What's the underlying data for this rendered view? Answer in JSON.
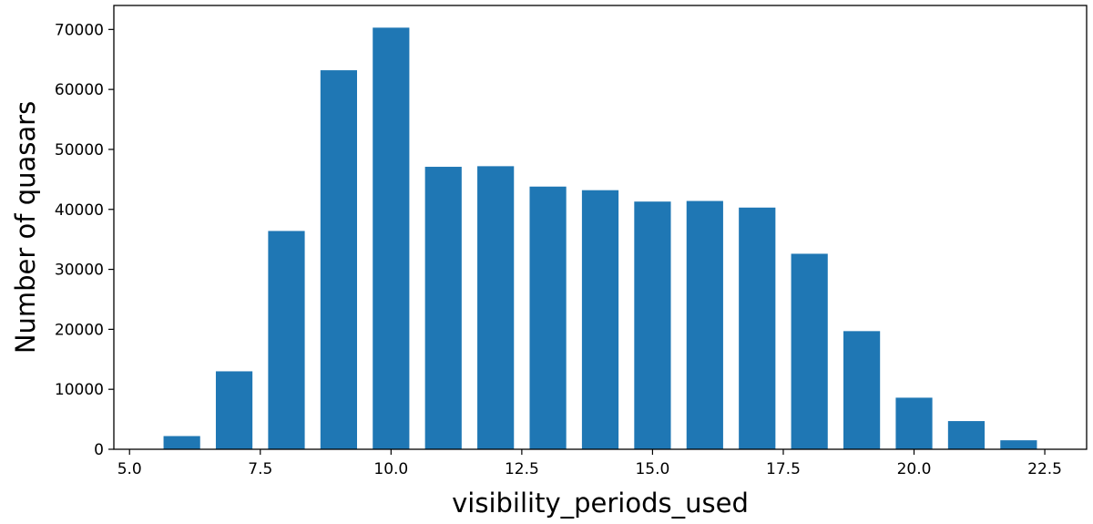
{
  "chart_data": {
    "type": "bar",
    "title": "",
    "xlabel": "visibility_periods_used",
    "ylabel": "Number of  quasars",
    "x": [
      6,
      7,
      8,
      9,
      10,
      11,
      12,
      13,
      14,
      15,
      16,
      17,
      18,
      19,
      20,
      21,
      22
    ],
    "values": [
      2200,
      13000,
      36400,
      63200,
      70300,
      47100,
      47200,
      43800,
      43200,
      41300,
      41400,
      40300,
      32600,
      19700,
      8600,
      4700,
      1500
    ],
    "bar_width": 0.7,
    "xlim": [
      4.7,
      23.3
    ],
    "ylim": [
      0,
      74000
    ],
    "xticks": [
      5.0,
      7.5,
      10.0,
      12.5,
      15.0,
      17.5,
      20.0,
      22.5
    ],
    "xtick_labels": [
      "5.0",
      "7.5",
      "10.0",
      "12.5",
      "15.0",
      "17.5",
      "20.0",
      "22.5"
    ],
    "yticks": [
      0,
      10000,
      20000,
      30000,
      40000,
      50000,
      60000,
      70000
    ],
    "ytick_labels": [
      "0",
      "10000",
      "20000",
      "30000",
      "40000",
      "50000",
      "60000",
      "70000"
    ],
    "grid": false,
    "legend": "none",
    "bar_color": "#1f77b4"
  }
}
